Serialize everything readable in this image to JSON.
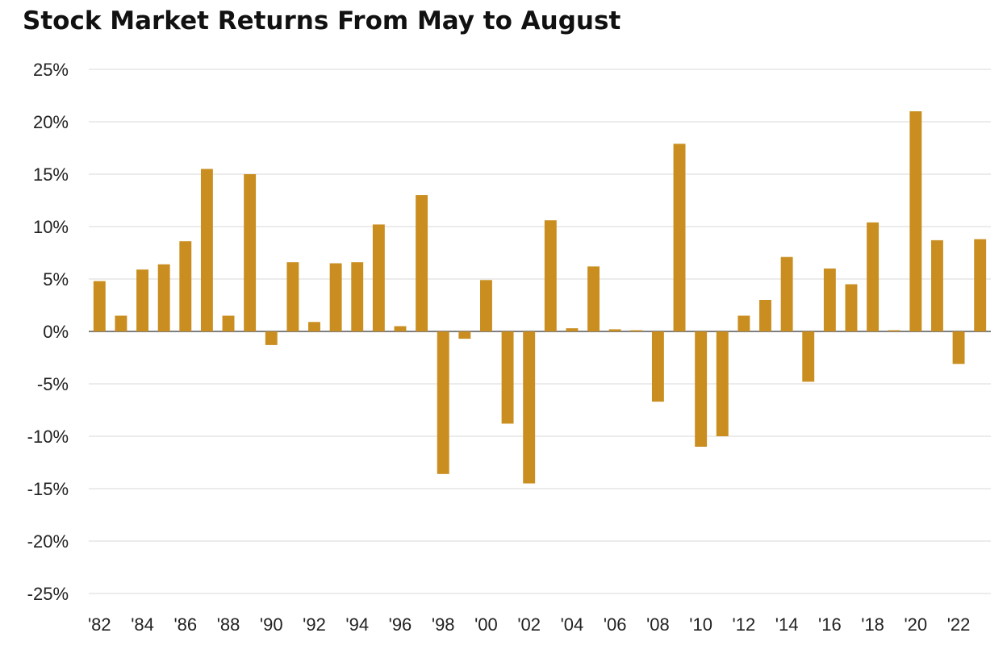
{
  "chart_data": {
    "type": "bar",
    "title": "Stock Market Returns From May to August",
    "xlabel": "",
    "ylabel": "",
    "ylim": [
      -25,
      25
    ],
    "y_ticks": [
      25,
      20,
      15,
      10,
      5,
      0,
      -5,
      -10,
      -15,
      -20,
      -25
    ],
    "y_tick_labels": [
      "25%",
      "20%",
      "15%",
      "10%",
      "5%",
      "0%",
      "-5%",
      "-10%",
      "-15%",
      "-20%",
      "-25%"
    ],
    "categories": [
      "1982",
      "1983",
      "1984",
      "1985",
      "1986",
      "1987",
      "1988",
      "1989",
      "1990",
      "1991",
      "1992",
      "1993",
      "1994",
      "1995",
      "1996",
      "1997",
      "1998",
      "1999",
      "2000",
      "2001",
      "2002",
      "2003",
      "2004",
      "2005",
      "2006",
      "2007",
      "2008",
      "2009",
      "2010",
      "2011",
      "2012",
      "2013",
      "2014",
      "2015",
      "2016",
      "2017",
      "2018",
      "2019",
      "2020",
      "2021",
      "2022",
      "2023"
    ],
    "x_tick_labels": [
      "'82",
      "",
      "'84",
      "",
      "'86",
      "",
      "'88",
      "",
      "'90",
      "",
      "'92",
      "",
      "'94",
      "",
      "'96",
      "",
      "'98",
      "",
      "'00",
      "",
      "'02",
      "",
      "'04",
      "",
      "'06",
      "",
      "'08",
      "",
      "'10",
      "",
      "'12",
      "",
      "'14",
      "",
      "'16",
      "",
      "'18",
      "",
      "'20",
      "",
      "'22",
      ""
    ],
    "values": [
      4.8,
      1.5,
      5.9,
      6.4,
      8.6,
      15.5,
      1.5,
      15.0,
      -1.3,
      6.6,
      0.9,
      6.5,
      6.6,
      10.2,
      0.5,
      13.0,
      -13.6,
      -0.7,
      4.9,
      -8.8,
      -14.5,
      10.6,
      0.3,
      6.2,
      0.2,
      0.1,
      -6.7,
      17.9,
      -11.0,
      -10.0,
      1.5,
      3.0,
      7.1,
      -4.8,
      6.0,
      4.5,
      10.4,
      0.1,
      21.0,
      8.7,
      -3.1,
      8.8
    ],
    "bar_color": "#C98E1F",
    "grid": true,
    "legend": "none"
  }
}
